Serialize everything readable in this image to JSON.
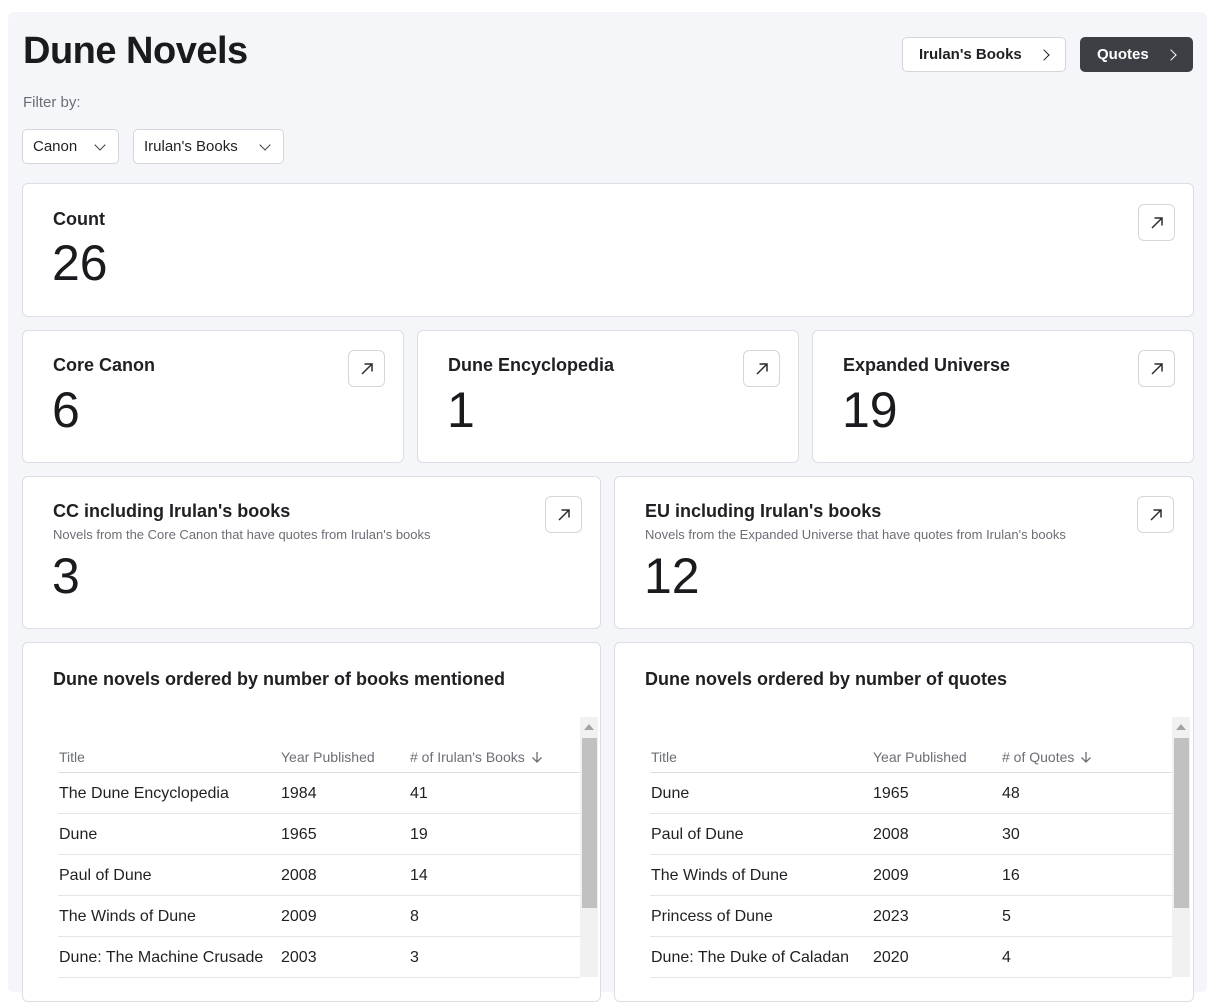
{
  "header": {
    "title": "Dune Novels",
    "nav_irulan": "Irulan's Books",
    "nav_quotes": "Quotes"
  },
  "filters": {
    "label": "Filter by:",
    "canon": "Canon",
    "books": "Irulan's Books"
  },
  "metrics": {
    "count": {
      "label": "Count",
      "value": "26"
    },
    "core_canon": {
      "label": "Core Canon",
      "value": "6"
    },
    "encyclopedia": {
      "label": "Dune Encyclopedia",
      "value": "1"
    },
    "expanded": {
      "label": "Expanded Universe",
      "value": "19"
    },
    "cc_irulan": {
      "label": "CC including Irulan's books",
      "description": "Novels from the Core Canon that have quotes from Irulan's books",
      "value": "3"
    },
    "eu_irulan": {
      "label": "EU including Irulan's books",
      "description": "Novels from the Expanded Universe that have quotes from Irulan's books",
      "value": "12"
    }
  },
  "table_books": {
    "title": "Dune novels ordered by number of books mentioned",
    "columns": [
      "Title",
      "Year Published",
      "# of Irulan's Books"
    ],
    "rows": [
      [
        "The Dune Encyclopedia",
        "1984",
        "41"
      ],
      [
        "Dune",
        "1965",
        "19"
      ],
      [
        "Paul of Dune",
        "2008",
        "14"
      ],
      [
        "The Winds of Dune",
        "2009",
        "8"
      ],
      [
        "Dune: The Machine Crusade",
        "2003",
        "3"
      ]
    ]
  },
  "table_quotes": {
    "title": "Dune novels ordered by number of quotes",
    "columns": [
      "Title",
      "Year Published",
      "# of Quotes"
    ],
    "rows": [
      [
        "Dune",
        "1965",
        "48"
      ],
      [
        "Paul of Dune",
        "2008",
        "30"
      ],
      [
        "The Winds of Dune",
        "2009",
        "16"
      ],
      [
        "Princess of Dune",
        "2023",
        "5"
      ],
      [
        "Dune: The Duke of Caladan",
        "2020",
        "4"
      ]
    ]
  },
  "icons": {
    "expand": "arrow-up-right-icon",
    "sort": "arrow-down-icon",
    "chevron": "chevron-icon"
  }
}
